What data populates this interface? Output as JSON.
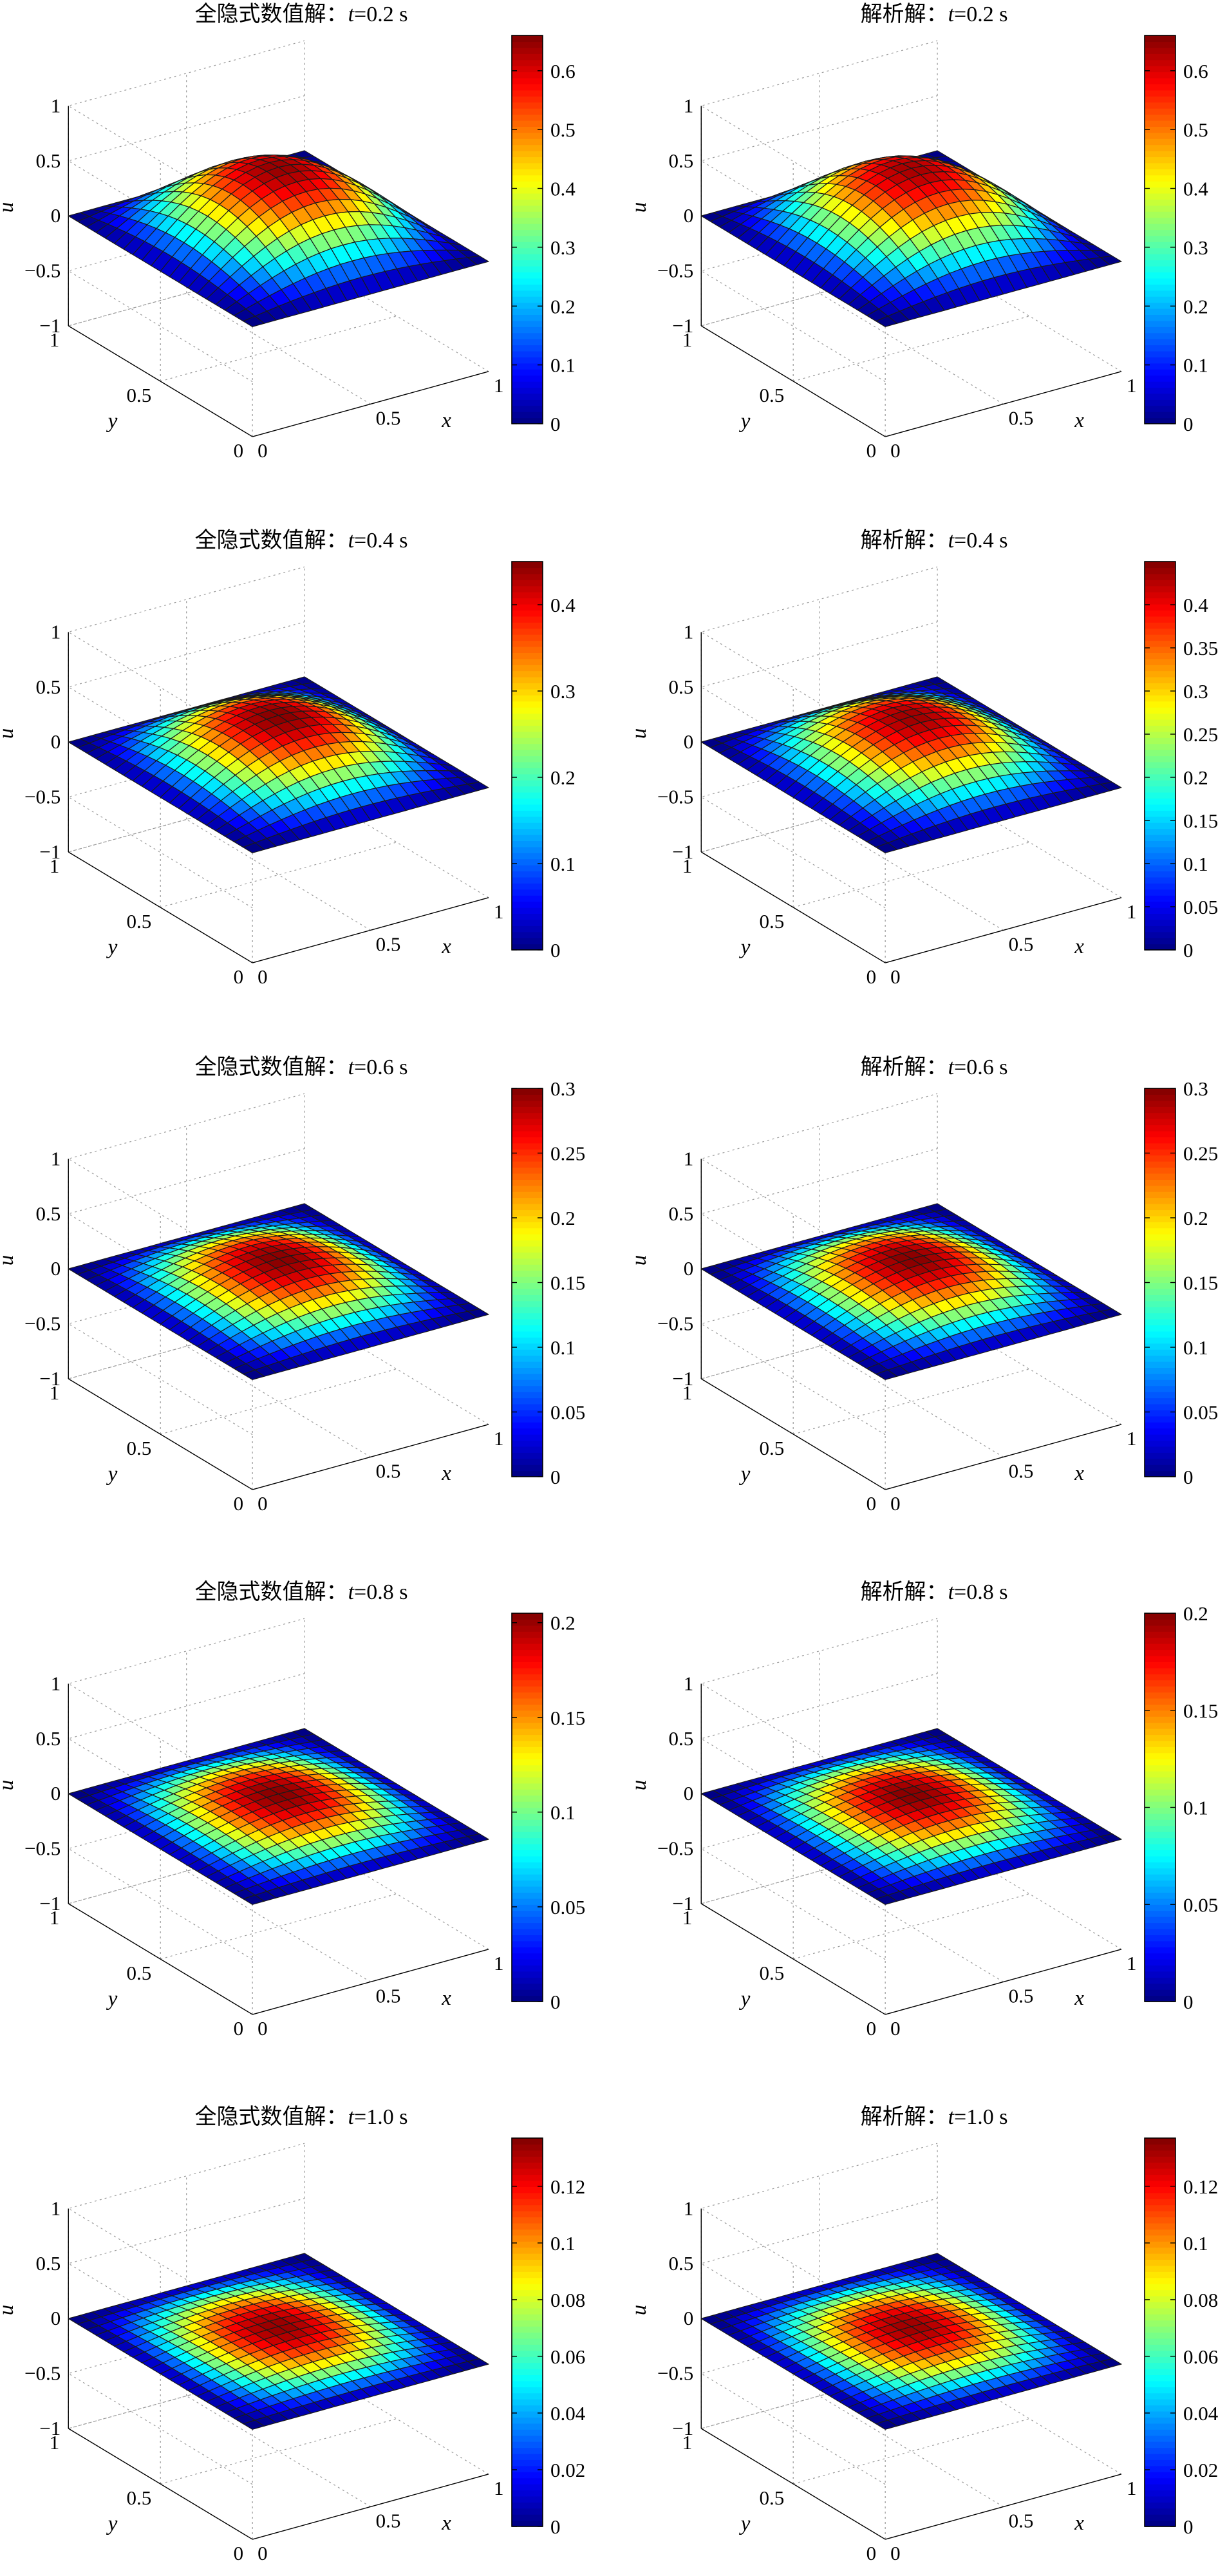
{
  "chart_data": [
    {
      "type": "surface",
      "title_prefix": "全隐式数值解：",
      "title_var": "t",
      "title_rest": "=0.2 s",
      "xlabel": "x",
      "ylabel": "y",
      "zlabel": "u",
      "x_ticks": [
        "0",
        "0.5",
        "1"
      ],
      "y_ticks": [
        "0",
        "0.5",
        "1"
      ],
      "z_ticks": [
        "1",
        "0.5",
        "0",
        "−0.5",
        "−1"
      ],
      "xlim": [
        0,
        1
      ],
      "ylim": [
        0,
        1
      ],
      "zlim": [
        -1,
        1
      ],
      "grid_n": 20,
      "peak": 0.65,
      "surface_function": "peak·sin(πx)·sin(πy)",
      "colormap": "jet",
      "colorbar": {
        "min": 0,
        "max": 0.66,
        "ticks": [
          0,
          0.1,
          0.2,
          0.3,
          0.4,
          0.5,
          0.6
        ]
      }
    },
    {
      "type": "surface",
      "title_prefix": "解析解：",
      "title_var": "t",
      "title_rest": "=0.2 s",
      "xlabel": "x",
      "ylabel": "y",
      "zlabel": "u",
      "x_ticks": [
        "0",
        "0.5",
        "1"
      ],
      "y_ticks": [
        "0",
        "0.5",
        "1"
      ],
      "z_ticks": [
        "1",
        "0.5",
        "0",
        "−0.5",
        "−1"
      ],
      "xlim": [
        0,
        1
      ],
      "ylim": [
        0,
        1
      ],
      "zlim": [
        -1,
        1
      ],
      "grid_n": 20,
      "peak": 0.64,
      "surface_function": "peak·sin(πx)·sin(πy)",
      "colormap": "jet",
      "colorbar": {
        "min": 0,
        "max": 0.66,
        "ticks": [
          0,
          0.1,
          0.2,
          0.3,
          0.4,
          0.5,
          0.6
        ]
      }
    },
    {
      "type": "surface",
      "title_prefix": "全隐式数值解：",
      "title_var": "t",
      "title_rest": "=0.4 s",
      "xlabel": "x",
      "ylabel": "y",
      "zlabel": "u",
      "x_ticks": [
        "0",
        "0.5",
        "1"
      ],
      "y_ticks": [
        "0",
        "0.5",
        "1"
      ],
      "z_ticks": [
        "1",
        "0.5",
        "0",
        "−0.5",
        "−1"
      ],
      "xlim": [
        0,
        1
      ],
      "ylim": [
        0,
        1
      ],
      "zlim": [
        -1,
        1
      ],
      "grid_n": 20,
      "peak": 0.45,
      "surface_function": "peak·sin(πx)·sin(πy)",
      "colormap": "jet",
      "colorbar": {
        "min": 0,
        "max": 0.45,
        "ticks": [
          0,
          0.1,
          0.2,
          0.3,
          0.4
        ]
      }
    },
    {
      "type": "surface",
      "title_prefix": "解析解：",
      "title_var": "t",
      "title_rest": "=0.4 s",
      "xlabel": "x",
      "ylabel": "y",
      "zlabel": "u",
      "x_ticks": [
        "0",
        "0.5",
        "1"
      ],
      "y_ticks": [
        "0",
        "0.5",
        "1"
      ],
      "z_ticks": [
        "1",
        "0.5",
        "0",
        "−0.5",
        "−1"
      ],
      "xlim": [
        0,
        1
      ],
      "ylim": [
        0,
        1
      ],
      "zlim": [
        -1,
        1
      ],
      "grid_n": 20,
      "peak": 0.44,
      "surface_function": "peak·sin(πx)·sin(πy)",
      "colormap": "jet",
      "colorbar": {
        "min": 0,
        "max": 0.45,
        "ticks": [
          0,
          0.05,
          0.1,
          0.15,
          0.2,
          0.25,
          0.3,
          0.35,
          0.4
        ]
      }
    },
    {
      "type": "surface",
      "title_prefix": "全隐式数值解：",
      "title_var": "t",
      "title_rest": "=0.6 s",
      "xlabel": "x",
      "ylabel": "y",
      "zlabel": "u",
      "x_ticks": [
        "0",
        "0.5",
        "1"
      ],
      "y_ticks": [
        "0",
        "0.5",
        "1"
      ],
      "z_ticks": [
        "1",
        "0.5",
        "0",
        "−0.5",
        "−1"
      ],
      "xlim": [
        0,
        1
      ],
      "ylim": [
        0,
        1
      ],
      "zlim": [
        -1,
        1
      ],
      "grid_n": 20,
      "peak": 0.3,
      "surface_function": "peak·sin(πx)·sin(πy)",
      "colormap": "jet",
      "colorbar": {
        "min": 0,
        "max": 0.3,
        "ticks": [
          0,
          0.05,
          0.1,
          0.15,
          0.2,
          0.25,
          0.3
        ]
      }
    },
    {
      "type": "surface",
      "title_prefix": "解析解：",
      "title_var": "t",
      "title_rest": "=0.6 s",
      "xlabel": "x",
      "ylabel": "y",
      "zlabel": "u",
      "x_ticks": [
        "0",
        "0.5",
        "1"
      ],
      "y_ticks": [
        "0",
        "0.5",
        "1"
      ],
      "z_ticks": [
        "1",
        "0.5",
        "0",
        "−0.5",
        "−1"
      ],
      "xlim": [
        0,
        1
      ],
      "ylim": [
        0,
        1
      ],
      "zlim": [
        -1,
        1
      ],
      "grid_n": 20,
      "peak": 0.3,
      "surface_function": "peak·sin(πx)·sin(πy)",
      "colormap": "jet",
      "colorbar": {
        "min": 0,
        "max": 0.3,
        "ticks": [
          0,
          0.05,
          0.1,
          0.15,
          0.2,
          0.25,
          0.3
        ]
      }
    },
    {
      "type": "surface",
      "title_prefix": "全隐式数值解：",
      "title_var": "t",
      "title_rest": "=0.8 s",
      "xlabel": "x",
      "ylabel": "y",
      "zlabel": "u",
      "x_ticks": [
        "0",
        "0.5",
        "1"
      ],
      "y_ticks": [
        "0",
        "0.5",
        "1"
      ],
      "z_ticks": [
        "1",
        "0.5",
        "0",
        "−0.5",
        "−1"
      ],
      "xlim": [
        0,
        1
      ],
      "ylim": [
        0,
        1
      ],
      "zlim": [
        -1,
        1
      ],
      "grid_n": 20,
      "peak": 0.205,
      "surface_function": "peak·sin(πx)·sin(πy)",
      "colormap": "jet",
      "colorbar": {
        "min": 0,
        "max": 0.205,
        "ticks": [
          0,
          0.05,
          0.1,
          0.15,
          0.2
        ]
      }
    },
    {
      "type": "surface",
      "title_prefix": "解析解：",
      "title_var": "t",
      "title_rest": "=0.8 s",
      "xlabel": "x",
      "ylabel": "y",
      "zlabel": "u",
      "x_ticks": [
        "0",
        "0.5",
        "1"
      ],
      "y_ticks": [
        "0",
        "0.5",
        "1"
      ],
      "z_ticks": [
        "1",
        "0.5",
        "0",
        "−0.5",
        "−1"
      ],
      "xlim": [
        0,
        1
      ],
      "ylim": [
        0,
        1
      ],
      "zlim": [
        -1,
        1
      ],
      "grid_n": 20,
      "peak": 0.2,
      "surface_function": "peak·sin(πx)·sin(πy)",
      "colormap": "jet",
      "colorbar": {
        "min": 0,
        "max": 0.2,
        "ticks": [
          0,
          0.05,
          0.1,
          0.15,
          0.2
        ]
      }
    },
    {
      "type": "surface",
      "title_prefix": "全隐式数值解：",
      "title_var": "t",
      "title_rest": "=1.0 s",
      "xlabel": "x",
      "ylabel": "y",
      "zlabel": "u",
      "x_ticks": [
        "0",
        "0.5",
        "1"
      ],
      "y_ticks": [
        "0",
        "0.5",
        "1"
      ],
      "z_ticks": [
        "1",
        "0.5",
        "0",
        "−0.5",
        "−1"
      ],
      "xlim": [
        0,
        1
      ],
      "ylim": [
        0,
        1
      ],
      "zlim": [
        -1,
        1
      ],
      "grid_n": 20,
      "peak": 0.135,
      "surface_function": "peak·sin(πx)·sin(πy)",
      "colormap": "jet",
      "colorbar": {
        "min": 0,
        "max": 0.137,
        "ticks": [
          0,
          0.02,
          0.04,
          0.06,
          0.08,
          0.1,
          0.12
        ]
      }
    },
    {
      "type": "surface",
      "title_prefix": "解析解：",
      "title_var": "t",
      "title_rest": "=1.0 s",
      "xlabel": "x",
      "ylabel": "y",
      "zlabel": "u",
      "x_ticks": [
        "0",
        "0.5",
        "1"
      ],
      "y_ticks": [
        "0",
        "0.5",
        "1"
      ],
      "z_ticks": [
        "1",
        "0.5",
        "0",
        "−0.5",
        "−1"
      ],
      "xlim": [
        0,
        1
      ],
      "ylim": [
        0,
        1
      ],
      "zlim": [
        -1,
        1
      ],
      "grid_n": 20,
      "peak": 0.134,
      "surface_function": "peak·sin(πx)·sin(πy)",
      "colormap": "jet",
      "colorbar": {
        "min": 0,
        "max": 0.137,
        "ticks": [
          0,
          0.02,
          0.04,
          0.06,
          0.08,
          0.1,
          0.12
        ]
      }
    }
  ]
}
